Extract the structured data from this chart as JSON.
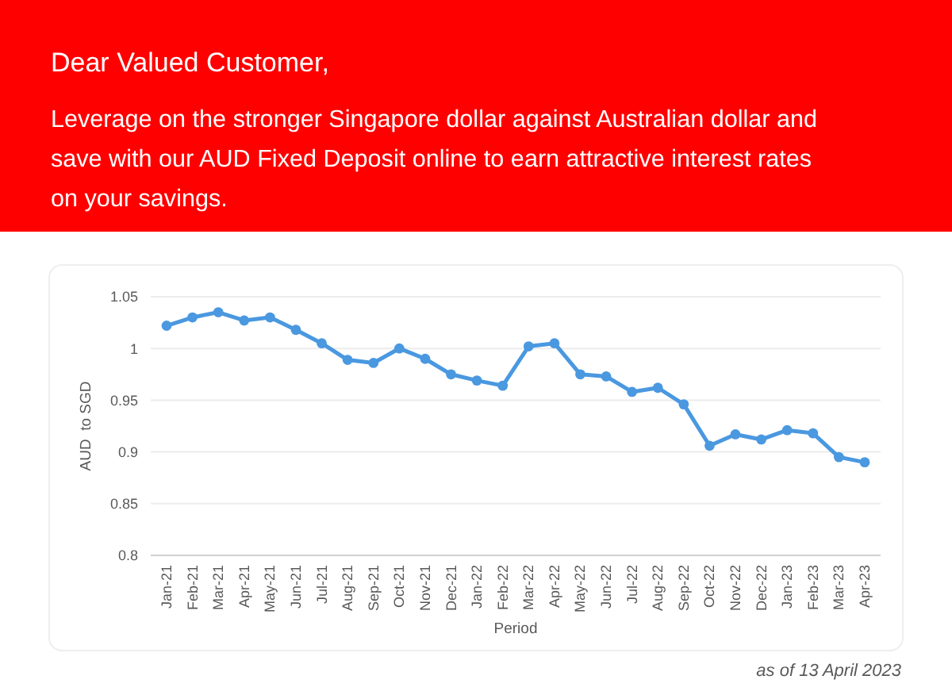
{
  "chart_data": {
    "type": "line",
    "title": "Dear Valued Customer,",
    "subtitle": "Leverage on the stronger Singapore dollar against Australian dollar and save with our AUD Fixed Deposit online to earn attractive interest rates on your savings.",
    "xlabel": "Period",
    "ylabel": "AUD  to SGD",
    "categories": [
      "Jan-21",
      "Feb-21",
      "Mar-21",
      "Apr-21",
      "May-21",
      "Jun-21",
      "Jul-21",
      "Aug-21",
      "Sep-21",
      "Oct-21",
      "Nov-21",
      "Dec-21",
      "Jan-22",
      "Feb-22",
      "Mar-22",
      "Apr-22",
      "May-22",
      "Jun-22",
      "Jul-22",
      "Aug-22",
      "Sep-22",
      "Oct-22",
      "Nov-22",
      "Dec-22",
      "Jan-23",
      "Feb-23",
      "Mar-23",
      "Apr-23"
    ],
    "series": [
      {
        "color": "#4a98e0",
        "values": [
          1.022,
          1.03,
          1.035,
          1.027,
          1.03,
          1.018,
          1.005,
          0.989,
          0.986,
          1.0,
          0.99,
          0.975,
          0.969,
          0.964,
          1.002,
          1.005,
          0.975,
          0.973,
          0.958,
          0.962,
          0.946,
          0.906,
          0.917,
          0.912,
          0.921,
          0.918,
          0.895,
          0.89
        ]
      }
    ],
    "ylim": [
      0.8,
      1.05
    ],
    "yticks": [
      {
        "value": 0.8,
        "label": "0.8"
      },
      {
        "value": 0.85,
        "label": "0.85"
      },
      {
        "value": 0.9,
        "label": "0.9"
      },
      {
        "value": 0.95,
        "label": "0.95"
      },
      {
        "value": 1,
        "label": "1"
      },
      {
        "value": 1.05,
        "label": "1.05"
      }
    ],
    "grid": "y",
    "marker": "circle",
    "line_style": "solid",
    "annotations": [
      "as of 13 April 2023"
    ]
  }
}
